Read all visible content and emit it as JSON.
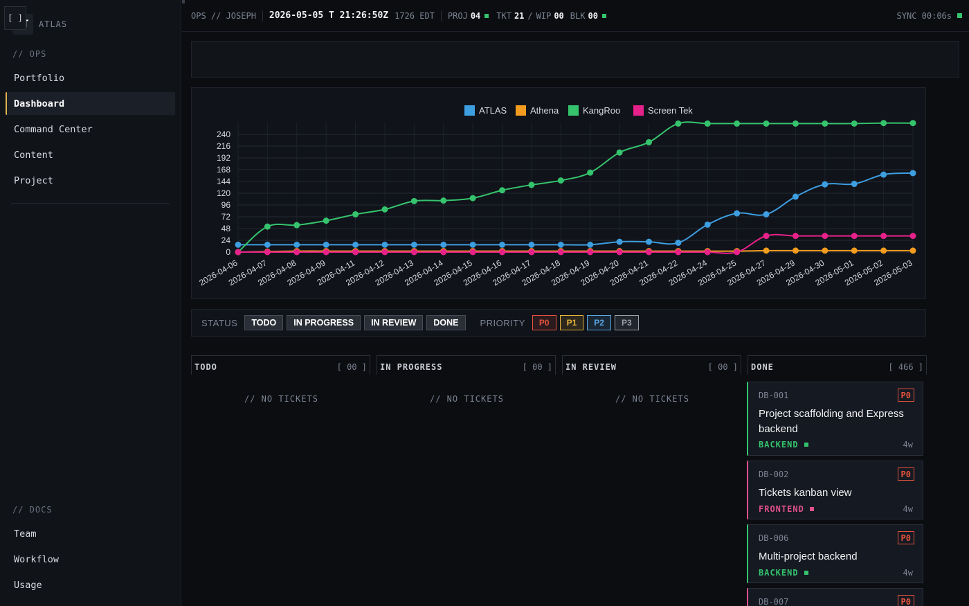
{
  "sidebar": {
    "logo_badge": "AT",
    "logo_name": "ATLAS",
    "ops_label": "// OPS",
    "ops_items": [
      "Portfolio",
      "Dashboard",
      "Command Center",
      "Content",
      "Project"
    ],
    "active_item": "Dashboard",
    "docs_label": "// DOCS",
    "docs_items": [
      "Team",
      "Workflow",
      "Usage"
    ]
  },
  "topbar": {
    "context": "OPS // JOSEPH",
    "timestamp": "2026-05-05 T 21:26:50Z",
    "local_time": "1726 EDT",
    "proj_label": "PROJ",
    "proj_value": "04",
    "tkt_label": "TKT",
    "tkt_value": "21",
    "wip_label": "WIP",
    "wip_value": "00",
    "blk_label": "BLK",
    "blk_value": "00",
    "sync": "SYNC 00:06s",
    "status_color": "#35c46d"
  },
  "right_panel": {
    "button": "[ ]"
  },
  "chart_data": {
    "type": "line",
    "title": "",
    "xlabel": "",
    "ylabel": "",
    "ylim": [
      0,
      264
    ],
    "yticks": [
      0,
      24,
      48,
      72,
      96,
      120,
      144,
      168,
      192,
      216,
      240
    ],
    "legend_position": "top-center",
    "grid": true,
    "categories": [
      "2026-04-06",
      "2026-04-07",
      "2026-04-08",
      "2026-04-09",
      "2026-04-11",
      "2026-04-12",
      "2026-04-13",
      "2026-04-14",
      "2026-04-15",
      "2026-04-16",
      "2026-04-17",
      "2026-04-18",
      "2026-04-19",
      "2026-04-20",
      "2026-04-21",
      "2026-04-22",
      "2026-04-24",
      "2026-04-25",
      "2026-04-27",
      "2026-04-29",
      "2026-04-30",
      "2026-05-01",
      "2026-05-02",
      "2026-05-03"
    ],
    "series": [
      {
        "name": "ATLAS",
        "color": "#3d9ee0",
        "values": [
          15,
          15,
          15,
          15,
          15,
          15,
          15,
          15,
          15,
          15,
          15,
          15,
          15,
          21,
          21,
          19,
          56,
          79,
          77,
          113,
          138,
          139,
          158,
          161
        ]
      },
      {
        "name": "Athena",
        "color": "#f39c1f",
        "values": [
          0,
          1,
          2,
          2,
          2,
          2,
          2,
          2,
          2,
          2,
          2,
          2,
          2,
          2,
          2,
          2,
          2,
          2,
          3,
          3,
          3,
          3,
          3,
          3
        ]
      },
      {
        "name": "KangRoo",
        "color": "#35c46d",
        "values": [
          0,
          52,
          55,
          64,
          77,
          87,
          104,
          105,
          110,
          126,
          137,
          146,
          162,
          203,
          224,
          262,
          262,
          262,
          262,
          262,
          262,
          262,
          263,
          263
        ]
      },
      {
        "name": "Screen Tek",
        "color": "#e6218a",
        "values": [
          0,
          0,
          0,
          0,
          0,
          0,
          0,
          0,
          0,
          0,
          0,
          0,
          0,
          0,
          0,
          0,
          0,
          0,
          33,
          33,
          33,
          33,
          33,
          33
        ]
      }
    ]
  },
  "filters": {
    "status_label": "STATUS",
    "status_chips": [
      "TODO",
      "IN PROGRESS",
      "IN REVIEW",
      "DONE"
    ],
    "priority_label": "PRIORITY",
    "priority_chips": [
      {
        "label": "P0",
        "color": "#e5533d"
      },
      {
        "label": "P1",
        "color": "#e8b53c"
      },
      {
        "label": "P2",
        "color": "#5aa9e6"
      },
      {
        "label": "P3",
        "color": "#9aa0aa"
      }
    ]
  },
  "kanban": {
    "columns": [
      {
        "title": "TODO",
        "count": "[ 00 ]",
        "empty": "// NO TICKETS"
      },
      {
        "title": "IN PROGRESS",
        "count": "[ 00 ]",
        "empty": "// NO TICKETS"
      },
      {
        "title": "IN REVIEW",
        "count": "[ 00 ]",
        "empty": "// NO TICKETS"
      },
      {
        "title": "DONE",
        "count": "[ 466 ]"
      }
    ],
    "done_cards": [
      {
        "id": "DB-001",
        "priority": "P0",
        "title": "Project scaffolding and Express backend",
        "tag": "BACKEND",
        "tag_color": "#35c46d",
        "age": "4w",
        "accent": "#35c46d"
      },
      {
        "id": "DB-002",
        "priority": "P0",
        "title": "Tickets kanban view",
        "tag": "FRONTEND",
        "tag_color": "#e0508c",
        "age": "4w",
        "accent": "#e0508c"
      },
      {
        "id": "DB-006",
        "priority": "P0",
        "title": "Multi-project backend",
        "tag": "BACKEND",
        "tag_color": "#35c46d",
        "age": "4w",
        "accent": "#35c46d"
      },
      {
        "id": "DB-007",
        "priority": "P0",
        "title": "",
        "tag": "",
        "tag_color": "#e0508c",
        "age": "",
        "accent": "#e0508c"
      }
    ]
  }
}
